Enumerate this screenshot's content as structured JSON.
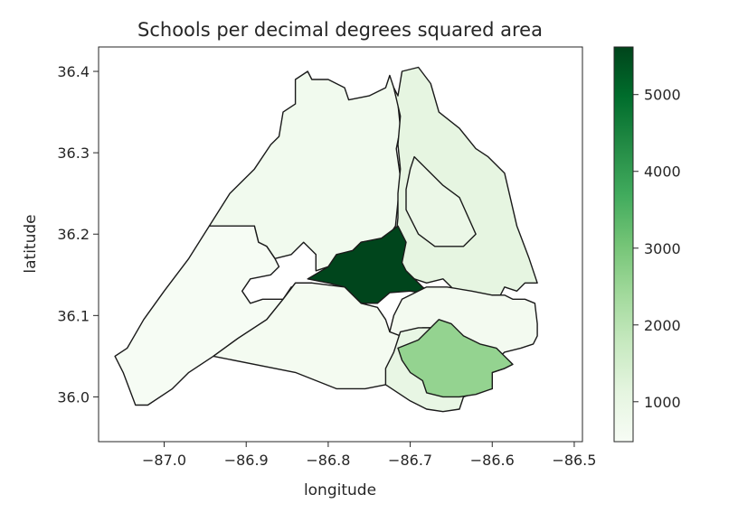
{
  "chart_data": {
    "type": "choropleth",
    "title": "Schools per decimal degrees squared area",
    "xlabel": "longitude",
    "ylabel": "latitude",
    "xlim": [
      -87.08,
      -86.49
    ],
    "ylim": [
      35.945,
      36.43
    ],
    "x_ticks": [
      -87.0,
      -86.9,
      -86.8,
      -86.7,
      -86.6,
      -86.5
    ],
    "x_tick_labels": [
      "−87.0",
      "−86.9",
      "−86.8",
      "−86.7",
      "−86.6",
      "−86.5"
    ],
    "y_ticks": [
      36.0,
      36.1,
      36.2,
      36.3,
      36.4
    ],
    "y_tick_labels": [
      "36.0",
      "36.1",
      "36.2",
      "36.3",
      "36.4"
    ],
    "grid": false,
    "colormap": "Greens",
    "colorbar": {
      "min": 480,
      "max": 5620,
      "ticks": [
        1000,
        2000,
        3000,
        4000,
        5000
      ],
      "tick_labels": [
        "1000",
        "2000",
        "3000",
        "4000",
        "5000"
      ]
    },
    "regions": [
      {
        "id": "northwest",
        "value": 700,
        "coords": [
          [
            -86.945,
            36.21
          ],
          [
            -86.92,
            36.25
          ],
          [
            -86.89,
            36.28
          ],
          [
            -86.87,
            36.31
          ],
          [
            -86.86,
            36.32
          ],
          [
            -86.855,
            36.35
          ],
          [
            -86.84,
            36.36
          ],
          [
            -86.84,
            36.39
          ],
          [
            -86.825,
            36.4
          ],
          [
            -86.82,
            36.39
          ],
          [
            -86.8,
            36.39
          ],
          [
            -86.78,
            36.38
          ],
          [
            -86.775,
            36.365
          ],
          [
            -86.75,
            36.37
          ],
          [
            -86.73,
            36.38
          ],
          [
            -86.725,
            36.395
          ],
          [
            -86.72,
            36.38
          ],
          [
            -86.715,
            36.36
          ],
          [
            -86.712,
            36.33
          ],
          [
            -86.717,
            36.305
          ],
          [
            -86.712,
            36.27
          ],
          [
            -86.715,
            36.24
          ],
          [
            -86.718,
            36.21
          ],
          [
            -86.728,
            36.195
          ],
          [
            -86.76,
            36.19
          ],
          [
            -86.77,
            36.18
          ],
          [
            -86.785,
            36.165
          ],
          [
            -86.815,
            36.155
          ],
          [
            -86.815,
            36.175
          ],
          [
            -86.83,
            36.19
          ],
          [
            -86.845,
            36.175
          ],
          [
            -86.865,
            36.17
          ],
          [
            -86.875,
            36.185
          ],
          [
            -86.885,
            36.19
          ],
          [
            -86.89,
            36.21
          ],
          [
            -86.945,
            36.21
          ]
        ]
      },
      {
        "id": "northeast",
        "value": 1100,
        "coords": [
          [
            -86.72,
            36.38
          ],
          [
            -86.715,
            36.37
          ],
          [
            -86.71,
            36.4
          ],
          [
            -86.69,
            36.405
          ],
          [
            -86.675,
            36.385
          ],
          [
            -86.665,
            36.35
          ],
          [
            -86.64,
            36.33
          ],
          [
            -86.62,
            36.305
          ],
          [
            -86.605,
            36.295
          ],
          [
            -86.585,
            36.275
          ],
          [
            -86.57,
            36.21
          ],
          [
            -86.555,
            36.17
          ],
          [
            -86.545,
            36.14
          ],
          [
            -86.56,
            36.14
          ],
          [
            -86.57,
            36.13
          ],
          [
            -86.585,
            36.135
          ],
          [
            -86.59,
            36.125
          ],
          [
            -86.62,
            36.125
          ],
          [
            -86.645,
            36.13
          ],
          [
            -86.66,
            36.145
          ],
          [
            -86.68,
            36.14
          ],
          [
            -86.695,
            36.145
          ],
          [
            -86.71,
            36.155
          ],
          [
            -86.718,
            36.19
          ],
          [
            -86.715,
            36.22
          ],
          [
            -86.715,
            36.25
          ],
          [
            -86.712,
            36.28
          ],
          [
            -86.715,
            36.31
          ],
          [
            -86.712,
            36.345
          ],
          [
            -86.72,
            36.38
          ]
        ]
      },
      {
        "id": "east-inner",
        "value": 900,
        "coords": [
          [
            -86.695,
            36.295
          ],
          [
            -86.66,
            36.26
          ],
          [
            -86.64,
            36.245
          ],
          [
            -86.62,
            36.2
          ],
          [
            -86.635,
            36.185
          ],
          [
            -86.67,
            36.185
          ],
          [
            -86.69,
            36.2
          ],
          [
            -86.705,
            36.23
          ],
          [
            -86.705,
            36.255
          ],
          [
            -86.7,
            36.28
          ],
          [
            -86.695,
            36.295
          ]
        ]
      },
      {
        "id": "west",
        "value": 520,
        "coords": [
          [
            -86.945,
            36.21
          ],
          [
            -86.89,
            36.21
          ],
          [
            -86.885,
            36.19
          ],
          [
            -86.875,
            36.185
          ],
          [
            -86.865,
            36.17
          ],
          [
            -86.86,
            36.16
          ],
          [
            -86.87,
            36.15
          ],
          [
            -86.895,
            36.145
          ],
          [
            -86.905,
            36.13
          ],
          [
            -86.895,
            36.115
          ],
          [
            -86.88,
            36.12
          ],
          [
            -86.855,
            36.12
          ],
          [
            -86.845,
            36.135
          ],
          [
            -86.82,
            36.14
          ],
          [
            -86.84,
            36.14
          ],
          [
            -86.855,
            36.12
          ],
          [
            -86.875,
            36.095
          ],
          [
            -86.91,
            36.072
          ],
          [
            -86.94,
            36.05
          ],
          [
            -86.97,
            36.03
          ],
          [
            -86.99,
            36.01
          ],
          [
            -87.02,
            35.99
          ],
          [
            -87.035,
            35.99
          ],
          [
            -87.05,
            36.03
          ],
          [
            -87.06,
            36.05
          ],
          [
            -87.045,
            36.06
          ],
          [
            -87.025,
            36.095
          ],
          [
            -87.0,
            36.13
          ],
          [
            -86.97,
            36.17
          ],
          [
            -86.945,
            36.21
          ]
        ]
      },
      {
        "id": "center",
        "value": 5600,
        "coords": [
          [
            -86.825,
            36.145
          ],
          [
            -86.8,
            36.16
          ],
          [
            -86.79,
            36.175
          ],
          [
            -86.77,
            36.18
          ],
          [
            -86.76,
            36.19
          ],
          [
            -86.735,
            36.195
          ],
          [
            -86.715,
            36.21
          ],
          [
            -86.705,
            36.19
          ],
          [
            -86.71,
            36.165
          ],
          [
            -86.705,
            36.155
          ],
          [
            -86.695,
            36.145
          ],
          [
            -86.685,
            36.135
          ],
          [
            -86.67,
            36.125
          ],
          [
            -86.7,
            36.13
          ],
          [
            -86.725,
            36.128
          ],
          [
            -86.74,
            36.115
          ],
          [
            -86.76,
            36.115
          ],
          [
            -86.78,
            36.135
          ],
          [
            -86.8,
            36.14
          ],
          [
            -86.825,
            36.145
          ]
        ]
      },
      {
        "id": "southwest-middle",
        "value": 600,
        "coords": [
          [
            -86.82,
            36.14
          ],
          [
            -86.78,
            36.135
          ],
          [
            -86.76,
            36.115
          ],
          [
            -86.74,
            36.11
          ],
          [
            -86.73,
            36.095
          ],
          [
            -86.725,
            36.08
          ],
          [
            -86.712,
            36.075
          ],
          [
            -86.7,
            36.05
          ],
          [
            -86.69,
            36.04
          ],
          [
            -86.72,
            36.035
          ],
          [
            -86.73,
            36.015
          ],
          [
            -86.755,
            36.01
          ],
          [
            -86.79,
            36.01
          ],
          [
            -86.84,
            36.03
          ],
          [
            -86.94,
            36.05
          ],
          [
            -86.91,
            36.072
          ],
          [
            -86.875,
            36.095
          ],
          [
            -86.855,
            36.12
          ],
          [
            -86.84,
            36.14
          ],
          [
            -86.82,
            36.14
          ]
        ]
      },
      {
        "id": "east-middle",
        "value": 620,
        "coords": [
          [
            -86.71,
            36.12
          ],
          [
            -86.68,
            36.135
          ],
          [
            -86.655,
            36.135
          ],
          [
            -86.625,
            36.13
          ],
          [
            -86.6,
            36.125
          ],
          [
            -86.585,
            36.125
          ],
          [
            -86.575,
            36.12
          ],
          [
            -86.56,
            36.12
          ],
          [
            -86.548,
            36.115
          ],
          [
            -86.545,
            36.09
          ],
          [
            -86.545,
            36.075
          ],
          [
            -86.55,
            36.065
          ],
          [
            -86.565,
            36.06
          ],
          [
            -86.585,
            36.055
          ],
          [
            -86.595,
            36.045
          ],
          [
            -86.62,
            36.04
          ],
          [
            -86.64,
            36.055
          ],
          [
            -86.65,
            36.075
          ],
          [
            -86.665,
            36.085
          ],
          [
            -86.685,
            36.085
          ],
          [
            -86.712,
            36.075
          ],
          [
            -86.725,
            36.08
          ],
          [
            -86.72,
            36.1
          ],
          [
            -86.71,
            36.12
          ]
        ]
      },
      {
        "id": "southeast",
        "value": 1000,
        "coords": [
          [
            -86.712,
            36.08
          ],
          [
            -86.69,
            36.085
          ],
          [
            -86.665,
            36.085
          ],
          [
            -86.65,
            36.075
          ],
          [
            -86.64,
            36.06
          ],
          [
            -86.6,
            36.05
          ],
          [
            -86.59,
            36.045
          ],
          [
            -86.575,
            36.04
          ],
          [
            -86.585,
            36.035
          ],
          [
            -86.6,
            36.03
          ],
          [
            -86.6,
            36.01
          ],
          [
            -86.62,
            36.005
          ],
          [
            -86.635,
            36.0
          ],
          [
            -86.64,
            35.985
          ],
          [
            -86.66,
            35.982
          ],
          [
            -86.68,
            35.985
          ],
          [
            -86.7,
            35.995
          ],
          [
            -86.715,
            36.005
          ],
          [
            -86.73,
            36.015
          ],
          [
            -86.73,
            36.035
          ],
          [
            -86.72,
            36.055
          ],
          [
            -86.712,
            36.08
          ]
        ]
      },
      {
        "id": "southeast-highlight",
        "value": 2600,
        "coords": [
          [
            -86.665,
            36.095
          ],
          [
            -86.65,
            36.09
          ],
          [
            -86.635,
            36.075
          ],
          [
            -86.615,
            36.065
          ],
          [
            -86.595,
            36.06
          ],
          [
            -86.58,
            36.045
          ],
          [
            -86.575,
            36.04
          ],
          [
            -86.585,
            36.035
          ],
          [
            -86.6,
            36.03
          ],
          [
            -86.6,
            36.01
          ],
          [
            -86.62,
            36.003
          ],
          [
            -86.64,
            36.0
          ],
          [
            -86.66,
            36.0
          ],
          [
            -86.68,
            36.005
          ],
          [
            -86.685,
            36.02
          ],
          [
            -86.7,
            36.03
          ],
          [
            -86.71,
            36.045
          ],
          [
            -86.715,
            36.06
          ],
          [
            -86.69,
            36.07
          ],
          [
            -86.675,
            36.085
          ],
          [
            -86.665,
            36.095
          ]
        ]
      }
    ]
  }
}
